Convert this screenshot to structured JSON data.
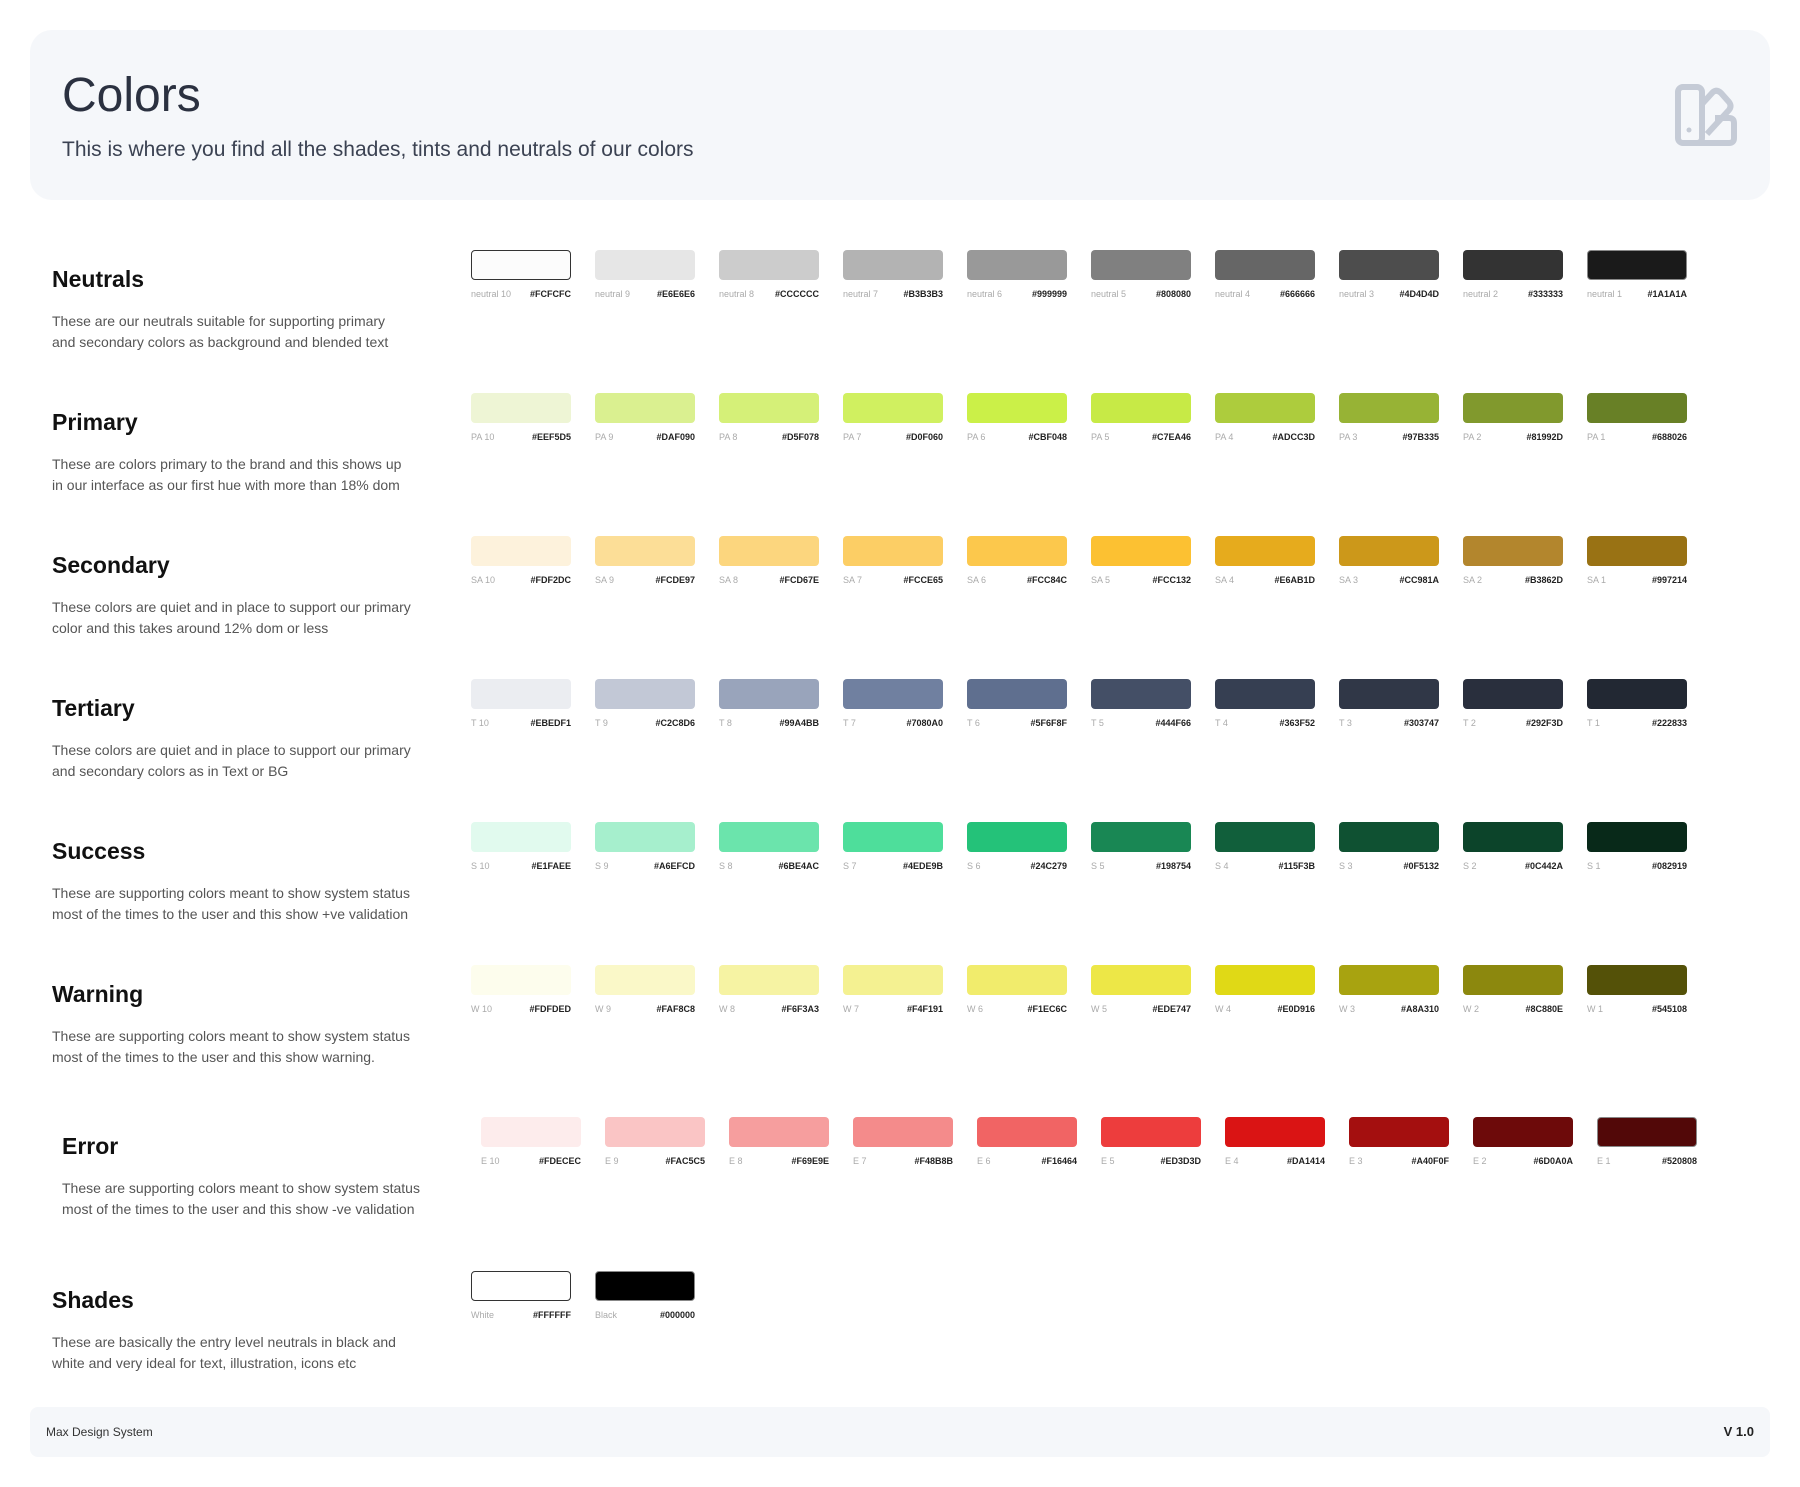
{
  "header": {
    "title": "Colors",
    "subtitle": "This is where you find all the shades, tints and neutrals of our colors",
    "icon": "swatch-book-icon"
  },
  "sections": [
    {
      "title": "Neutrals",
      "description": "These are our neutrals suitable for supporting primary and secondary colors as background and blended text",
      "swatches": [
        {
          "label": "neutral 10",
          "hex": "#FCFCFC"
        },
        {
          "label": "neutral 9",
          "hex": "#E6E6E6"
        },
        {
          "label": "neutral 8",
          "hex": "#CCCCCC"
        },
        {
          "label": "neutral 7",
          "hex": "#B3B3B3"
        },
        {
          "label": "neutral 6",
          "hex": "#999999"
        },
        {
          "label": "neutral 5",
          "hex": "#808080"
        },
        {
          "label": "neutral 4",
          "hex": "#666666"
        },
        {
          "label": "neutral 3",
          "hex": "#4D4D4D"
        },
        {
          "label": "neutral 2",
          "hex": "#333333"
        },
        {
          "label": "neutral 1",
          "hex": "#1A1A1A"
        }
      ]
    },
    {
      "title": "Primary",
      "description": "These are colors primary to the brand and this shows up in our interface as our first hue with more than 18% dom",
      "swatches": [
        {
          "label": "PA 10",
          "hex": "#EEF5D5"
        },
        {
          "label": "PA 9",
          "hex": "#DAF090"
        },
        {
          "label": "PA 8",
          "hex": "#D5F078"
        },
        {
          "label": "PA 7",
          "hex": "#D0F060"
        },
        {
          "label": "PA 6",
          "hex": "#CBF048"
        },
        {
          "label": "PA 5",
          "hex": "#C7EA46"
        },
        {
          "label": "PA 4",
          "hex": "#ADCC3D"
        },
        {
          "label": "PA 3",
          "hex": "#97B335"
        },
        {
          "label": "PA 2",
          "hex": "#81992D"
        },
        {
          "label": "PA 1",
          "hex": "#688026"
        }
      ]
    },
    {
      "title": "Secondary",
      "description": "These colors are quiet and in place to support our primary color and this takes around 12% dom or less",
      "swatches": [
        {
          "label": "SA 10",
          "hex": "#FDF2DC"
        },
        {
          "label": "SA 9",
          "hex": "#FCDE97"
        },
        {
          "label": "SA 8",
          "hex": "#FCD67E"
        },
        {
          "label": "SA 7",
          "hex": "#FCCE65"
        },
        {
          "label": "SA 6",
          "hex": "#FCC84C"
        },
        {
          "label": "SA 5",
          "hex": "#FCC132"
        },
        {
          "label": "SA 4",
          "hex": "#E6AB1D"
        },
        {
          "label": "SA 3",
          "hex": "#CC981A"
        },
        {
          "label": "SA 2",
          "hex": "#B3862D"
        },
        {
          "label": "SA 1",
          "hex": "#997214"
        }
      ]
    },
    {
      "title": "Tertiary",
      "description": "These colors are quiet and in place to support our primary and secondary colors as in Text or BG",
      "swatches": [
        {
          "label": "T 10",
          "hex": "#EBEDF1"
        },
        {
          "label": "T 9",
          "hex": "#C2C8D6"
        },
        {
          "label": "T 8",
          "hex": "#99A4BB"
        },
        {
          "label": "T 7",
          "hex": "#7080A0"
        },
        {
          "label": "T 6",
          "hex": "#5F6F8F"
        },
        {
          "label": "T 5",
          "hex": "#444F66"
        },
        {
          "label": "T 4",
          "hex": "#363F52"
        },
        {
          "label": "T 3",
          "hex": "#303747"
        },
        {
          "label": "T 2",
          "hex": "#292F3D"
        },
        {
          "label": "T 1",
          "hex": "#222833"
        }
      ]
    },
    {
      "title": "Success",
      "description": "These are supporting colors meant to show system status most of the times to the user and this show +ve validation",
      "swatches": [
        {
          "label": "S 10",
          "hex": "#E1FAEE"
        },
        {
          "label": "S 9",
          "hex": "#A6EFCD"
        },
        {
          "label": "S 8",
          "hex": "#6BE4AC"
        },
        {
          "label": "S 7",
          "hex": "#4EDE9B"
        },
        {
          "label": "S 6",
          "hex": "#24C279"
        },
        {
          "label": "S 5",
          "hex": "#198754"
        },
        {
          "label": "S 4",
          "hex": "#115F3B"
        },
        {
          "label": "S 3",
          "hex": "#0F5132"
        },
        {
          "label": "S 2",
          "hex": "#0C442A"
        },
        {
          "label": "S 1",
          "hex": "#082919"
        }
      ]
    },
    {
      "title": "Warning",
      "description": "These are supporting colors meant to show system status most of the times to the user and this show warning.",
      "swatches": [
        {
          "label": "W 10",
          "hex": "#FDFDED"
        },
        {
          "label": "W 9",
          "hex": "#FAF8C8"
        },
        {
          "label": "W 8",
          "hex": "#F6F3A3"
        },
        {
          "label": "W 7",
          "hex": "#F4F191"
        },
        {
          "label": "W 6",
          "hex": "#F1EC6C"
        },
        {
          "label": "W 5",
          "hex": "#EDE747"
        },
        {
          "label": "W 4",
          "hex": "#E0D916"
        },
        {
          "label": "W 3",
          "hex": "#A8A310"
        },
        {
          "label": "W 2",
          "hex": "#8C880E"
        },
        {
          "label": "W 1",
          "hex": "#545108"
        }
      ]
    },
    {
      "title": "Error",
      "description": "These are supporting colors meant to show system status most of the times to the user and this show -ve validation",
      "swatches": [
        {
          "label": "E 10",
          "hex": "#FDECEC"
        },
        {
          "label": "E 9",
          "hex": "#FAC5C5"
        },
        {
          "label": "E 8",
          "hex": "#F69E9E"
        },
        {
          "label": "E 7",
          "hex": "#F48B8B"
        },
        {
          "label": "E 6",
          "hex": "#F16464"
        },
        {
          "label": "E 5",
          "hex": "#ED3D3D"
        },
        {
          "label": "E 4",
          "hex": "#DA1414"
        },
        {
          "label": "E 3",
          "hex": "#A40F0F"
        },
        {
          "label": "E 2",
          "hex": "#6D0A0A"
        },
        {
          "label": "E 1",
          "hex": "#520808"
        }
      ]
    },
    {
      "title": "Shades",
      "description": "These are basically the entry level neutrals in black and white and very ideal for text, illustration, icons etc",
      "swatches": [
        {
          "label": "White",
          "hex": "#FFFFFF"
        },
        {
          "label": "Black",
          "hex": "#000000"
        }
      ]
    }
  ],
  "footer": {
    "left": "Max Design System",
    "right": "V 1.0"
  }
}
